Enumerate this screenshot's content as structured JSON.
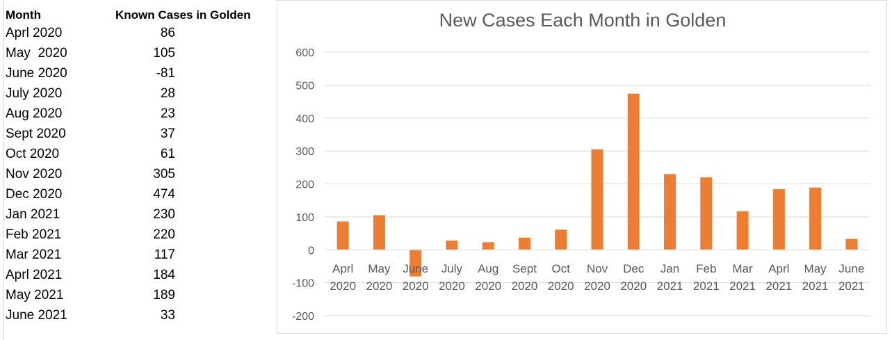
{
  "table": {
    "header": {
      "month": "Month",
      "cases": "Known Cases in Golden"
    },
    "rows": [
      {
        "month": "Aprl 2020",
        "cases": "86"
      },
      {
        "month": "May  2020",
        "cases": "105"
      },
      {
        "month": "June 2020",
        "cases": "-81"
      },
      {
        "month": "July 2020",
        "cases": "28"
      },
      {
        "month": "Aug 2020",
        "cases": "23"
      },
      {
        "month": "Sept 2020",
        "cases": "37"
      },
      {
        "month": "Oct 2020",
        "cases": "61"
      },
      {
        "month": "Nov 2020",
        "cases": "305"
      },
      {
        "month": "Dec 2020",
        "cases": "474"
      },
      {
        "month": "Jan 2021",
        "cases": "230"
      },
      {
        "month": "Feb 2021",
        "cases": "220"
      },
      {
        "month": "Mar 2021",
        "cases": "117"
      },
      {
        "month": "Aprl 2021",
        "cases": "184"
      },
      {
        "month": "May 2021",
        "cases": "189"
      },
      {
        "month": "June 2021",
        "cases": "33"
      }
    ]
  },
  "chart_data": {
    "type": "bar",
    "title": "New Cases Each Month in Golden",
    "categories": [
      [
        "Aprl",
        "2020"
      ],
      [
        "May",
        "2020"
      ],
      [
        "June",
        "2020"
      ],
      [
        "July",
        "2020"
      ],
      [
        "Aug",
        "2020"
      ],
      [
        "Sept",
        "2020"
      ],
      [
        "Oct",
        "2020"
      ],
      [
        "Nov",
        "2020"
      ],
      [
        "Dec",
        "2020"
      ],
      [
        "Jan",
        "2021"
      ],
      [
        "Feb",
        "2021"
      ],
      [
        "Mar",
        "2021"
      ],
      [
        "Aprl",
        "2021"
      ],
      [
        "May",
        "2021"
      ],
      [
        "June",
        "2021"
      ]
    ],
    "values": [
      86,
      105,
      -81,
      28,
      23,
      37,
      61,
      305,
      474,
      230,
      220,
      117,
      184,
      189,
      33
    ],
    "ylim": [
      -200,
      600
    ],
    "yticks": [
      -200,
      -100,
      0,
      100,
      200,
      300,
      400,
      500,
      600
    ],
    "xlabel": "",
    "ylabel": "",
    "grid": true,
    "legend": "none",
    "bar_color": "#ed7d31"
  }
}
